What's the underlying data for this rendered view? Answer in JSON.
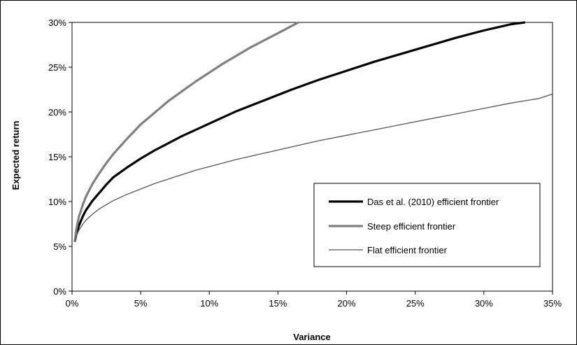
{
  "chart_data": {
    "type": "line",
    "xlabel": "Variance",
    "ylabel": "Expected return",
    "xlim": [
      0,
      35
    ],
    "ylim": [
      0,
      30
    ],
    "x_ticks": [
      "0%",
      "5%",
      "10%",
      "15%",
      "20%",
      "25%",
      "30%",
      "35%"
    ],
    "y_ticks": [
      "0%",
      "5%",
      "10%",
      "15%",
      "20%",
      "25%",
      "30%"
    ],
    "grid": false,
    "legend_position": "lower-right",
    "series": [
      {
        "name": "Das et al. (2010) efficient frontier",
        "color": "#000000",
        "x": [
          0.2,
          0.3,
          0.5,
          0.8,
          1,
          1.5,
          2,
          2.5,
          3,
          4,
          5,
          6,
          7,
          8,
          9,
          10,
          12,
          14,
          16,
          18,
          20,
          22,
          24,
          26,
          28,
          30,
          32,
          33
        ],
        "y": [
          5.5,
          6.3,
          7.3,
          8.4,
          9.0,
          10.1,
          11.0,
          11.9,
          12.7,
          13.8,
          14.8,
          15.7,
          16.5,
          17.3,
          18.0,
          18.7,
          20.1,
          21.3,
          22.5,
          23.6,
          24.6,
          25.6,
          26.5,
          27.4,
          28.3,
          29.1,
          29.8,
          30.0
        ]
      },
      {
        "name": "Steep efficient frontier",
        "color": "#808080",
        "x": [
          0.2,
          0.3,
          0.5,
          0.8,
          1,
          1.5,
          2,
          2.5,
          3,
          4,
          5,
          6,
          7,
          8,
          9,
          10,
          11,
          12,
          13,
          14,
          15,
          16,
          16.5
        ],
        "y": [
          5.5,
          6.8,
          8.3,
          9.7,
          10.5,
          12.0,
          13.2,
          14.3,
          15.3,
          17.0,
          18.6,
          19.9,
          21.2,
          22.3,
          23.4,
          24.4,
          25.4,
          26.3,
          27.2,
          28.0,
          28.8,
          29.6,
          30.0
        ]
      },
      {
        "name": "Flat efficient frontier",
        "color": "#555555",
        "x": [
          0.2,
          0.3,
          0.5,
          0.8,
          1,
          1.5,
          2,
          3,
          4,
          5,
          6,
          7,
          8,
          9,
          10,
          12,
          14,
          16,
          18,
          20,
          22,
          24,
          26,
          28,
          30,
          32,
          34,
          35
        ],
        "y": [
          5.5,
          6.1,
          6.8,
          7.5,
          7.9,
          8.6,
          9.2,
          10.1,
          10.8,
          11.4,
          12.0,
          12.5,
          13.0,
          13.5,
          13.9,
          14.7,
          15.4,
          16.1,
          16.8,
          17.4,
          18.0,
          18.6,
          19.2,
          19.8,
          20.4,
          21.0,
          21.5,
          22.0
        ]
      }
    ]
  }
}
